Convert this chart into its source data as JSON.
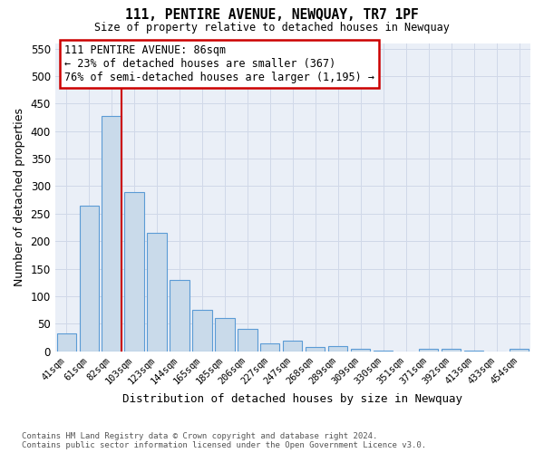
{
  "title": "111, PENTIRE AVENUE, NEWQUAY, TR7 1PF",
  "subtitle": "Size of property relative to detached houses in Newquay",
  "xlabel": "Distribution of detached houses by size in Newquay",
  "ylabel": "Number of detached properties",
  "footer_line1": "Contains HM Land Registry data © Crown copyright and database right 2024.",
  "footer_line2": "Contains public sector information licensed under the Open Government Licence v3.0.",
  "bar_labels": [
    "41sqm",
    "61sqm",
    "82sqm",
    "103sqm",
    "123sqm",
    "144sqm",
    "165sqm",
    "185sqm",
    "206sqm",
    "227sqm",
    "247sqm",
    "268sqm",
    "289sqm",
    "309sqm",
    "330sqm",
    "351sqm",
    "371sqm",
    "392sqm",
    "413sqm",
    "433sqm",
    "454sqm"
  ],
  "bar_values": [
    33,
    265,
    427,
    290,
    215,
    130,
    76,
    60,
    40,
    15,
    20,
    7,
    10,
    5,
    2,
    0,
    5,
    5,
    2,
    0,
    5
  ],
  "bar_color": "#c9daea",
  "bar_edge_color": "#5b9bd5",
  "grid_color": "#d0d8e8",
  "background_color": "#eaeff7",
  "annotation_box_facecolor": "#ffffff",
  "annotation_border_color": "#cc0000",
  "property_line_color": "#cc0000",
  "property_label": "111 PENTIRE AVENUE: 86sqm",
  "annotation_line1": "← 23% of detached houses are smaller (367)",
  "annotation_line2": "76% of semi-detached houses are larger (1,195) →",
  "ylim": [
    0,
    560
  ],
  "yticks": [
    0,
    50,
    100,
    150,
    200,
    250,
    300,
    350,
    400,
    450,
    500,
    550
  ],
  "figsize": [
    6.0,
    5.0
  ],
  "dpi": 100
}
